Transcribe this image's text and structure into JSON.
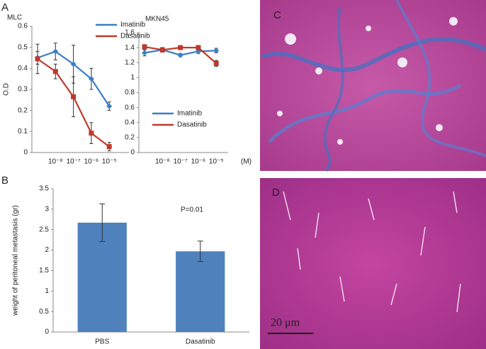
{
  "panel_labels": [
    "A",
    "B",
    "C",
    "D"
  ],
  "scale_bar": "20 μm",
  "chart_data": [
    {
      "type": "line",
      "title": "MLC",
      "y_label": "O.D",
      "categories": [
        null,
        "10⁻⁸",
        "10⁻⁷",
        "10⁻⁶",
        "10⁻⁵"
      ],
      "series": [
        {
          "name": "Imatinib",
          "color": "#3b7fc4",
          "marker": "diamond",
          "values": [
            0.45,
            0.48,
            0.42,
            0.35,
            0.22
          ],
          "errors": [
            0.03,
            0.04,
            0.09,
            0.05,
            0.02
          ]
        },
        {
          "name": "Dasatinib",
          "color": "#c0392b",
          "marker": "square",
          "values": [
            0.445,
            0.385,
            0.265,
            0.092,
            0.028
          ],
          "errors": [
            0.07,
            0.035,
            0.095,
            0.05,
            0.02
          ]
        }
      ],
      "ylim": [
        0,
        0.6
      ],
      "yticks": [
        0,
        0.1,
        0.2,
        0.3,
        0.4,
        0.5,
        0.6
      ],
      "legend": "top-right"
    },
    {
      "type": "line",
      "title": "MKN45",
      "x_unit": "(M)",
      "categories": [
        null,
        "10⁻⁸",
        "10⁻⁷",
        "10⁻⁶",
        "10⁻⁵"
      ],
      "series": [
        {
          "name": "Imatinib",
          "color": "#3b7fc4",
          "marker": "diamond",
          "values": [
            1.33,
            1.37,
            1.3,
            1.35,
            1.36
          ],
          "errors": [
            0.04,
            0.03,
            0.02,
            0.03,
            0.03
          ]
        },
        {
          "name": "Dasatinib",
          "color": "#c0392b",
          "marker": "square",
          "values": [
            1.41,
            1.37,
            1.4,
            1.4,
            1.19
          ],
          "errors": [
            0.03,
            0.03,
            0.02,
            0.03,
            0.04
          ]
        }
      ],
      "ylim": [
        0,
        1.6
      ],
      "yticks": [
        0,
        0.2,
        0.4,
        0.6,
        0.8,
        1,
        1.2,
        1.4,
        1.6
      ],
      "legend": "bottom-center"
    },
    {
      "type": "bar",
      "y_label": "weight of peritoneal metastasis (gr)",
      "annotation": "P=0.01",
      "categories": [
        "PBS",
        "Dasatinib"
      ],
      "values": [
        2.67,
        1.97
      ],
      "errors": [
        0.46,
        0.25
      ],
      "color": "#4f81bd",
      "ylim": [
        0,
        3.5
      ],
      "yticks": [
        0,
        0.5,
        1,
        1.5,
        2,
        2.5,
        3,
        3.5
      ]
    }
  ]
}
